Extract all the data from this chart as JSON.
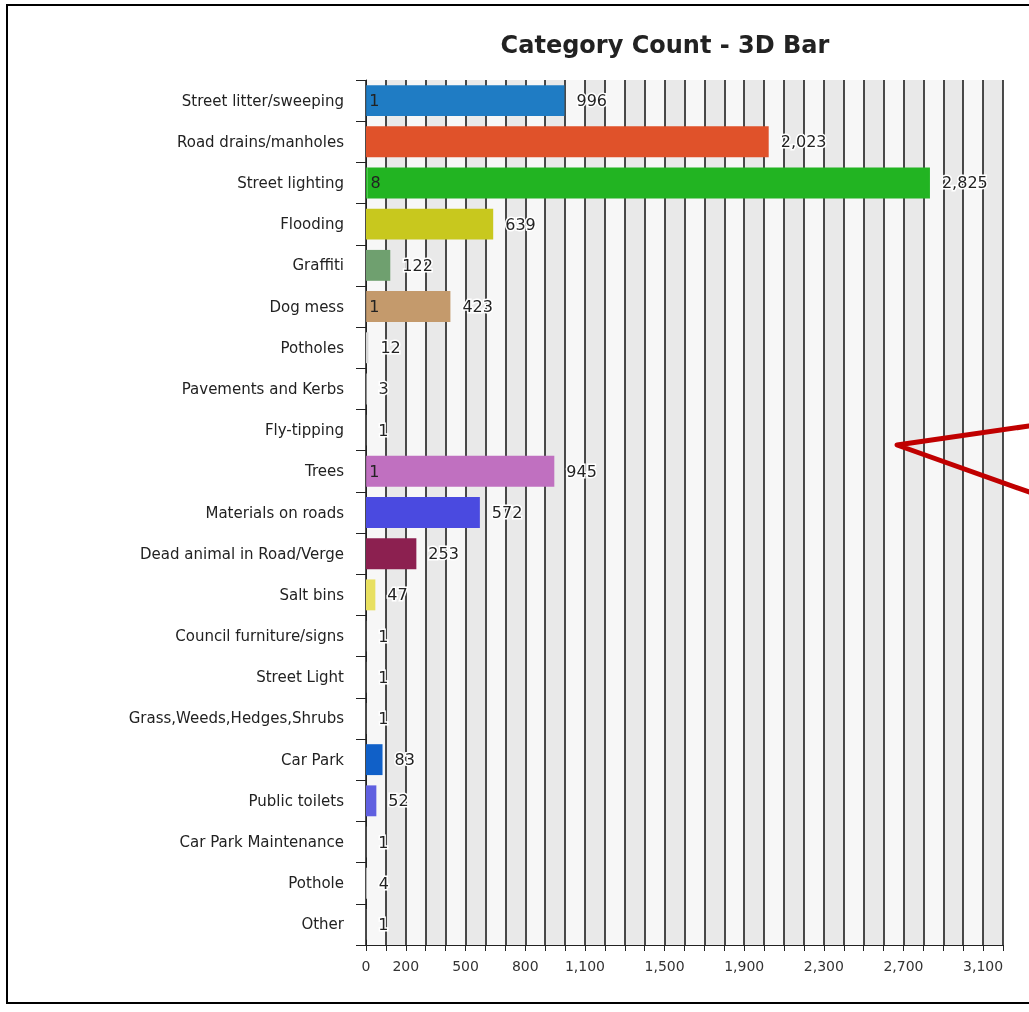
{
  "chart_data": {
    "type": "bar",
    "title": "Category Count - 3D Bar",
    "orientation": "horizontal",
    "stacked": true,
    "grid": "x",
    "categories": [
      "Street litter/sweeping",
      "Road drains/manholes",
      "Street lighting",
      "Flooding",
      "Graffiti",
      "Dog mess",
      "Potholes",
      "Pavements and Kerbs",
      "Fly-tipping",
      "Trees",
      "Materials on roads",
      "Dead animal in Road/Verge",
      "Salt bins",
      "Council furniture/signs",
      "Street Light",
      "Grass,Weeds,Hedges,Shrubs",
      "Car Park",
      "Public toilets",
      "Car Park Maintenance",
      "Pothole",
      "Other"
    ],
    "series": [
      {
        "colors": [
          "#1f7cc4",
          "#e0522a",
          "#22b422",
          "#c8c81e",
          "#6fa06f",
          "#c49a6c",
          "#d8d8d8",
          "#d8d8d8",
          "#d8d8d8",
          "#c070c0",
          "#4a4ae0",
          "#8c2050",
          "#e8e060",
          "#d8d8d8",
          "#d8d8d8",
          "#d8d8d8",
          "#d8d8d8",
          "#d8d8d8",
          "#d8d8d8",
          "#d8d8d8",
          "#d8d8d8"
        ],
        "values": [
          1,
          null,
          8,
          null,
          null,
          1,
          null,
          null,
          null,
          1,
          null,
          null,
          null,
          null,
          null,
          null,
          null,
          null,
          null,
          null,
          null
        ],
        "value_labels": [
          "1",
          null,
          "8",
          null,
          null,
          "1",
          null,
          null,
          null,
          "1",
          null,
          null,
          null,
          null,
          null,
          null,
          null,
          null,
          null,
          null,
          null
        ]
      },
      {
        "colors": [
          "#1f7cc4",
          "#e0522a",
          "#22b422",
          "#c8c81e",
          "#6fa06f",
          "#c49a6c",
          "#d8d8d8",
          "#d8d8d8",
          "#d8d8d8",
          "#c070c0",
          "#4a4ae0",
          "#8c2050",
          "#e8e060",
          "#d8d8d8",
          "#d8d8d8",
          "#d8d8d8",
          "#1060c8",
          "#6060e0",
          "#d8d8d8",
          "#d8d8d8",
          "#d8d8d8"
        ],
        "values": [
          996,
          2023,
          2825,
          639,
          122,
          423,
          12,
          3,
          1,
          945,
          572,
          253,
          47,
          1,
          1,
          1,
          83,
          52,
          1,
          4,
          1
        ],
        "value_labels": [
          "996",
          "2,023",
          "2,825",
          "639",
          "122",
          "423",
          "12",
          "3",
          "1",
          "945",
          "572",
          "253",
          "47",
          "1",
          "1",
          "1",
          "83",
          "52",
          "1",
          "4",
          "1"
        ]
      }
    ],
    "xlim": [
      0,
      3200
    ],
    "xticks": [
      0,
      {
        "value": 100,
        "label": null
      },
      200,
      {
        "value": 300,
        "label": null
      },
      {
        "value": 400,
        "label": null
      },
      500,
      {
        "value": 600,
        "label": null
      },
      {
        "value": 700,
        "label": null
      },
      800,
      {
        "value": 900,
        "label": null
      },
      {
        "value": 1000,
        "label": null
      },
      {
        "value": 1100,
        "label": "1,100"
      },
      {
        "value": 1200,
        "label": null
      },
      {
        "value": 1300,
        "label": null
      },
      {
        "value": 1400,
        "label": null
      },
      {
        "value": 1500,
        "label": "1,500"
      },
      {
        "value": 1600,
        "label": null
      },
      {
        "value": 1700,
        "label": null
      },
      {
        "value": 1800,
        "label": null
      },
      {
        "value": 1900,
        "label": "1,900"
      },
      {
        "value": 2000,
        "label": null
      },
      {
        "value": 2100,
        "label": null
      },
      {
        "value": 2200,
        "label": null
      },
      {
        "value": 2300,
        "label": "2,300"
      },
      {
        "value": 2400,
        "label": null
      },
      {
        "value": 2500,
        "label": null
      },
      {
        "value": 2600,
        "label": null
      },
      {
        "value": 2700,
        "label": "2,700"
      },
      {
        "value": 2800,
        "label": null
      },
      {
        "value": 2900,
        "label": null
      },
      {
        "value": 3000,
        "label": null
      },
      {
        "value": 3100,
        "label": "3,100"
      },
      {
        "value": 3200,
        "label": null
      }
    ]
  }
}
